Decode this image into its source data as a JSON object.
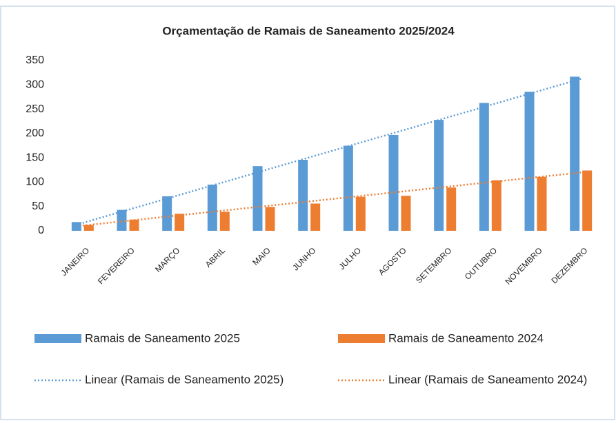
{
  "chart_data": {
    "type": "bar",
    "title": "Orçamentação de Ramais de Saneamento 2025/2024",
    "categories": [
      "JANEIRO",
      "FEVEREIRO",
      "MARÇO",
      "ABRIL",
      "MAIO",
      "JUNHO",
      "JULHO",
      "AGOSTO",
      "SETEMBRO",
      "OUTUBRO",
      "NOVEMBRO",
      "DEZEMBRO"
    ],
    "series": [
      {
        "name": "Ramais de Saneamento 2025",
        "color": "#5b9bd5",
        "values": [
          18,
          43,
          71,
          95,
          133,
          146,
          175,
          197,
          228,
          263,
          286,
          317
        ],
        "trendline": {
          "type": "linear",
          "name": "Linear (Ramais de Saneamento 2025)",
          "color": "#5b9bd5"
        }
      },
      {
        "name": "Ramais de Saneamento 2024",
        "color": "#ed7d31",
        "values": [
          12,
          23,
          35,
          39,
          49,
          56,
          70,
          72,
          89,
          104,
          111,
          124
        ],
        "trendline": {
          "type": "linear",
          "name": "Linear (Ramais de Saneamento 2024)",
          "color": "#ed7d31"
        }
      }
    ],
    "ylim": [
      0,
      350
    ],
    "yticks": [
      0,
      50,
      100,
      150,
      200,
      250,
      300,
      350
    ],
    "grid": false,
    "legend": "bottom"
  }
}
